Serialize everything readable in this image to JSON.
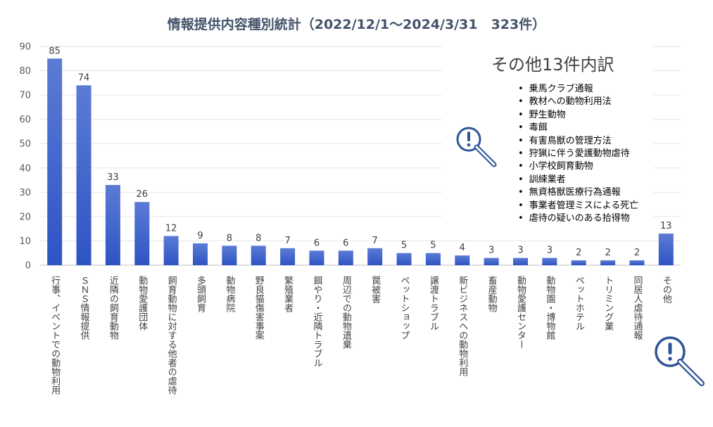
{
  "chart_data": {
    "type": "bar",
    "title": "情報提供内容種別統計（2022/12/1～2024/3/31　323件）",
    "categories": [
      "行事、イベントでの動物利用",
      "ＳＮＳ情報提供",
      "近隣の飼育動物",
      "動物愛護団体",
      "飼育動物に対する他者の虐待",
      "多頭飼育",
      "動物病院",
      "野良猫傷害事案",
      "繁殖業者",
      "餌やり・近隣トラブル",
      "周辺での動物遺棄",
      "罠被害",
      "ペットショップ",
      "譲渡トラブル",
      "新ビジネスへの動物利用",
      "畜産動物",
      "動物愛護センター",
      "動物園・博物館",
      "ペットホテル",
      "トリミング業",
      "同居人虐待通報",
      "その他"
    ],
    "values": [
      85,
      74,
      33,
      26,
      12,
      9,
      8,
      8,
      7,
      6,
      6,
      7,
      5,
      5,
      4,
      3,
      3,
      3,
      2,
      2,
      2,
      13
    ],
    "ylim": [
      0,
      90
    ],
    "yticks": [
      "0",
      "10",
      "20",
      "30",
      "40",
      "50",
      "60",
      "70",
      "80",
      "90"
    ],
    "grid": true,
    "bar_color_top": "#5b7bd5",
    "bar_color_bottom": "#2e54c4"
  },
  "breakdown": {
    "title": "その他13件内訳",
    "items": [
      "乗馬クラブ通報",
      "教材への動物利用法",
      "野生動物",
      "毒餌",
      "有害鳥獣の管理方法",
      "狩猟に伴う愛護動物虐待",
      "小学校飼育動物",
      "訓練業者",
      "無資格獣医療行為通報",
      "事業者管理ミスによる死亡",
      "虐待の疑いのある拾得物"
    ]
  },
  "icons": {
    "name": "magnifier-exclamation-icon",
    "color": "#2f5597"
  }
}
